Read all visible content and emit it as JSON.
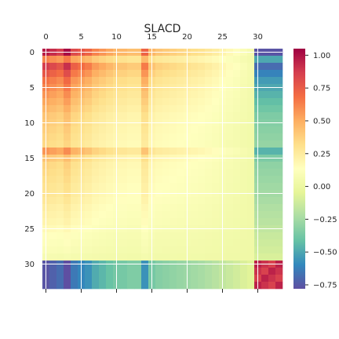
{
  "chart_data": {
    "type": "heatmap",
    "title": "SLACD",
    "n": 34,
    "x_ticks": [
      0,
      5,
      10,
      15,
      20,
      25,
      30
    ],
    "y_ticks": [
      0,
      5,
      10,
      15,
      20,
      25,
      30
    ],
    "colorbar": {
      "min": -0.78,
      "max": 1.05,
      "ticks": [
        -0.75,
        -0.5,
        -0.25,
        0.0,
        0.25,
        0.5,
        0.75,
        1.0
      ],
      "tick_labels": [
        "−0.75",
        "−0.50",
        "−0.25",
        "0.00",
        "0.25",
        "0.50",
        "0.75",
        "1.00"
      ],
      "colormap": "Spectral_r",
      "colors": [
        "#5e4fa2",
        "#3288bd",
        "#66c2a5",
        "#abdda4",
        "#e6f598",
        "#ffffbf",
        "#fee08b",
        "#fdae61",
        "#f46d43",
        "#d53e4f",
        "#9e0142"
      ]
    },
    "structure": {
      "row_strength": [
        0.95,
        0.6,
        0.85,
        0.75,
        0.65,
        0.6,
        0.55,
        0.5,
        0.45,
        0.4,
        0.38,
        0.36,
        0.34,
        0.32,
        0.55,
        0.4,
        0.34,
        0.32,
        0.3,
        0.28,
        0.27,
        0.25,
        0.22,
        0.2,
        0.18,
        0.15,
        0.12,
        0.1,
        0.08,
        0.05
      ],
      "col_strength": [
        0.95,
        0.9,
        0.85,
        1.0,
        0.8,
        0.75,
        0.7,
        0.6,
        0.55,
        0.5,
        0.45,
        0.45,
        0.42,
        0.42,
        0.7,
        0.45,
        0.4,
        0.38,
        0.36,
        0.34,
        0.32,
        0.3,
        0.28,
        0.25,
        0.22,
        0.18,
        0.15,
        0.12,
        0.08,
        0.05
      ],
      "block_rows": [
        30,
        31,
        32,
        33
      ],
      "block_cols": [
        30,
        31,
        32,
        33
      ],
      "diag_block_value": 0.95,
      "off_block_range": [
        -0.8,
        0.0
      ]
    }
  }
}
